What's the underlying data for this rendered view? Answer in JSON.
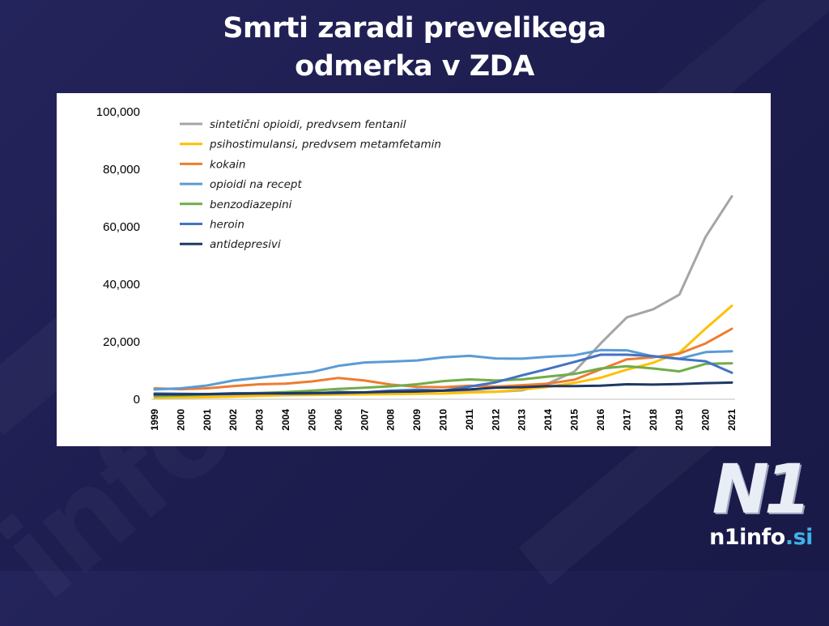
{
  "title": {
    "line1": "Smrti zaradi prevelikega",
    "line2": "odmerka v ZDA"
  },
  "logo": {
    "mark": "N1",
    "site_name": "n1info",
    "site_tld": ".si"
  },
  "chart_data": {
    "type": "line",
    "title": "Smrti zaradi prevelikega odmerka v ZDA",
    "xlabel": "",
    "ylabel": "",
    "ylim": [
      0,
      100000
    ],
    "yticks": [
      0,
      20000,
      40000,
      60000,
      80000,
      100000
    ],
    "ytick_labels": [
      "0",
      "20,000",
      "40,000",
      "60,000",
      "80,000",
      "100,000"
    ],
    "categories": [
      "1999",
      "2000",
      "2001",
      "2002",
      "2003",
      "2004",
      "2005",
      "2006",
      "2007",
      "2008",
      "2009",
      "2010",
      "2011",
      "2012",
      "2013",
      "2014",
      "2015",
      "2016",
      "2017",
      "2018",
      "2019",
      "2020",
      "2021"
    ],
    "legend_position": "top-left",
    "grid": false,
    "series": [
      {
        "name": "sintetični opioidi, predvsem fentanil",
        "color": "#a5a5a5",
        "values": [
          730,
          780,
          960,
          1300,
          1400,
          1660,
          1740,
          2700,
          2200,
          2300,
          2900,
          3000,
          2700,
          2600,
          3100,
          5500,
          9600,
          19400,
          28500,
          31300,
          36400,
          56500,
          70600
        ]
      },
      {
        "name": "psihostimulansi, predvsem metamfetamin",
        "color": "#ffc000",
        "values": [
          550,
          600,
          700,
          900,
          1200,
          1400,
          1500,
          1600,
          1700,
          1800,
          1900,
          2000,
          2300,
          2600,
          3400,
          4300,
          5700,
          7500,
          10300,
          12700,
          16200,
          24600,
          32500
        ]
      },
      {
        "name": "kokain",
        "color": "#ed7d31",
        "values": [
          3800,
          3500,
          3800,
          4600,
          5200,
          5400,
          6200,
          7400,
          6500,
          5100,
          4300,
          4200,
          4700,
          4400,
          4900,
          5400,
          6800,
          10400,
          13900,
          14600,
          15900,
          19400,
          24500
        ]
      },
      {
        "name": "opioidi na recept",
        "color": "#5b9bd5",
        "values": [
          3400,
          3800,
          4800,
          6500,
          7500,
          8500,
          9500,
          11600,
          12800,
          13100,
          13500,
          14600,
          15100,
          14200,
          14100,
          14800,
          15300,
          17100,
          17000,
          14900,
          14100,
          16400,
          16700
        ]
      },
      {
        "name": "benzodiazepini",
        "color": "#70ad47",
        "values": [
          1100,
          1300,
          1600,
          2000,
          2200,
          2500,
          3000,
          3600,
          4000,
          4500,
          5200,
          6300,
          6900,
          6500,
          6900,
          7900,
          8800,
          10700,
          11500,
          10700,
          9700,
          12300,
          12500
        ]
      },
      {
        "name": "heroin",
        "color": "#4472c4",
        "values": [
          2000,
          1900,
          1800,
          2100,
          2100,
          1900,
          2000,
          2100,
          2400,
          3000,
          3300,
          3000,
          4400,
          5900,
          8300,
          10600,
          13000,
          15500,
          15500,
          15000,
          14000,
          13200,
          9200
        ]
      },
      {
        "name": "antidepresivi",
        "color": "#1f3864",
        "values": [
          1700,
          1700,
          1800,
          1900,
          2000,
          2100,
          2200,
          2300,
          2400,
          2600,
          2700,
          3000,
          3400,
          4000,
          4200,
          4600,
          4600,
          4700,
          5200,
          5100,
          5300,
          5600,
          5800
        ]
      }
    ]
  }
}
